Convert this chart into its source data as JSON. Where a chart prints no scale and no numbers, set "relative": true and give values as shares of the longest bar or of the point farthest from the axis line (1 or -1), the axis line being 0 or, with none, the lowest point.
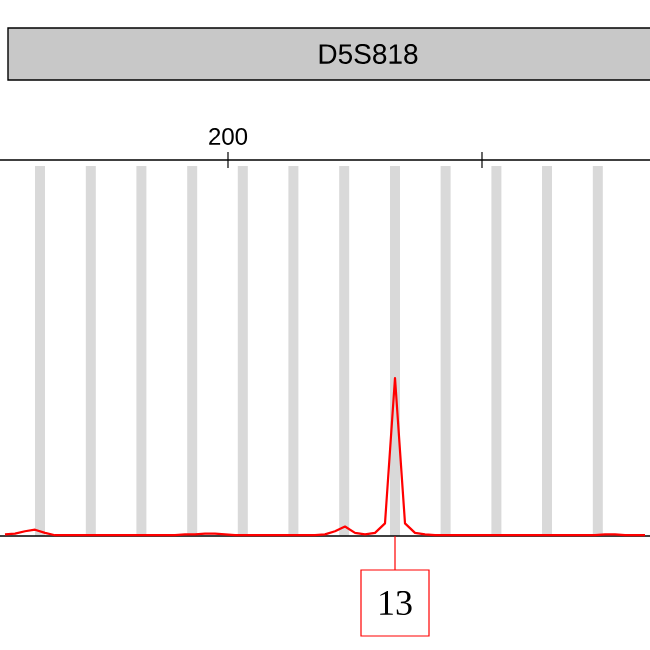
{
  "chart_data": {
    "type": "line",
    "title": "D5S818",
    "relative": true,
    "categories": [
      null,
      null,
      null,
      null,
      null,
      null,
      null,
      null,
      null,
      null,
      null,
      null,
      null,
      null,
      null,
      null,
      null,
      null,
      null,
      null,
      null,
      null,
      null,
      null,
      null,
      null,
      null,
      null,
      null,
      null,
      null,
      null,
      null,
      null,
      null,
      null,
      null,
      null,
      null,
      null,
      null,
      null,
      null,
      null,
      null,
      null,
      null,
      null,
      null,
      null,
      null,
      null,
      null,
      null,
      null,
      null,
      null,
      null,
      null,
      null,
      null,
      null,
      null,
      null,
      null
    ],
    "series": [
      {
        "color": "#ff0000",
        "values": [
          0.01,
          0.015,
          0.03,
          0.04,
          0.02,
          0.005,
          0.005,
          0.005,
          0.005,
          0.005,
          0.005,
          0.005,
          0.005,
          0.005,
          0.005,
          0.005,
          0.005,
          0.005,
          0.01,
          0.01,
          0.015,
          0.015,
          0.01,
          0.005,
          0.005,
          0.005,
          0.005,
          0.005,
          0.005,
          0.005,
          0.005,
          0.005,
          0.01,
          0.03,
          0.06,
          0.02,
          0.01,
          0.02,
          0.08,
          1.0,
          0.08,
          0.02,
          0.01,
          0.005,
          0.005,
          0.005,
          0.005,
          0.005,
          0.005,
          0.005,
          0.005,
          0.005,
          0.005,
          0.005,
          0.005,
          0.005,
          0.005,
          0.005,
          0.005,
          0.005,
          0.01,
          0.01,
          0.005,
          0.005,
          0.005
        ]
      }
    ],
    "annotations": [
      "13",
      "200"
    ]
  }
}
